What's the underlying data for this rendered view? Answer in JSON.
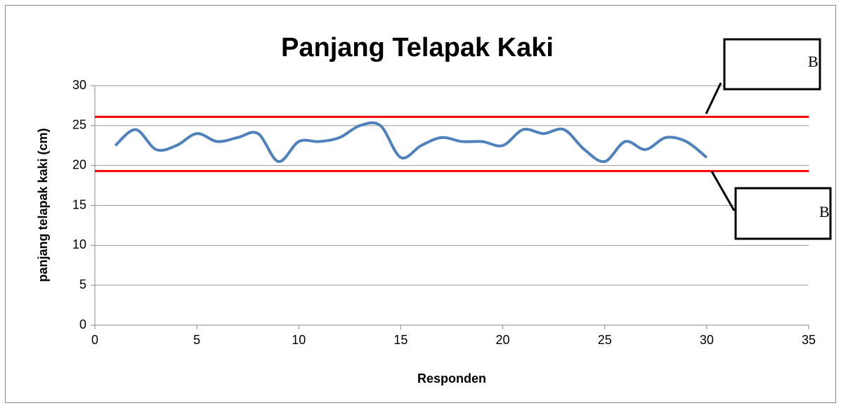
{
  "chart_data": {
    "type": "line",
    "title": "Panjang Telapak Kaki",
    "x_label": "Responden",
    "y_label": "panjang telapak kaki (cm)",
    "x": [
      1,
      2,
      3,
      4,
      5,
      6,
      7,
      8,
      9,
      10,
      11,
      12,
      13,
      14,
      15,
      16,
      17,
      18,
      19,
      20,
      21,
      22,
      23,
      24,
      25,
      26,
      27,
      28,
      29,
      30
    ],
    "series": [
      {
        "color": "#4f81bd",
        "values": [
          22.5,
          24.5,
          22,
          22.5,
          24,
          23,
          23.5,
          24,
          20.5,
          23,
          23,
          23.5,
          25,
          25,
          21,
          22.5,
          23.5,
          23,
          23,
          22.5,
          24.5,
          24,
          24.5,
          22,
          20.5,
          23,
          22,
          23.5,
          23,
          21
        ]
      }
    ],
    "reference_lines": [
      {
        "value": 26.1,
        "color": "#ff0000"
      },
      {
        "value": 19.3,
        "color": "#ff0000"
      }
    ],
    "annotations": [
      "B",
      "B"
    ],
    "xlim": [
      0,
      35
    ],
    "xticks": [
      0,
      5,
      10,
      15,
      20,
      25,
      30,
      35
    ],
    "ylim": [
      0,
      30
    ],
    "yticks": [
      0,
      5,
      10,
      15,
      20,
      25,
      30
    ],
    "grid": true,
    "smooth": true
  }
}
